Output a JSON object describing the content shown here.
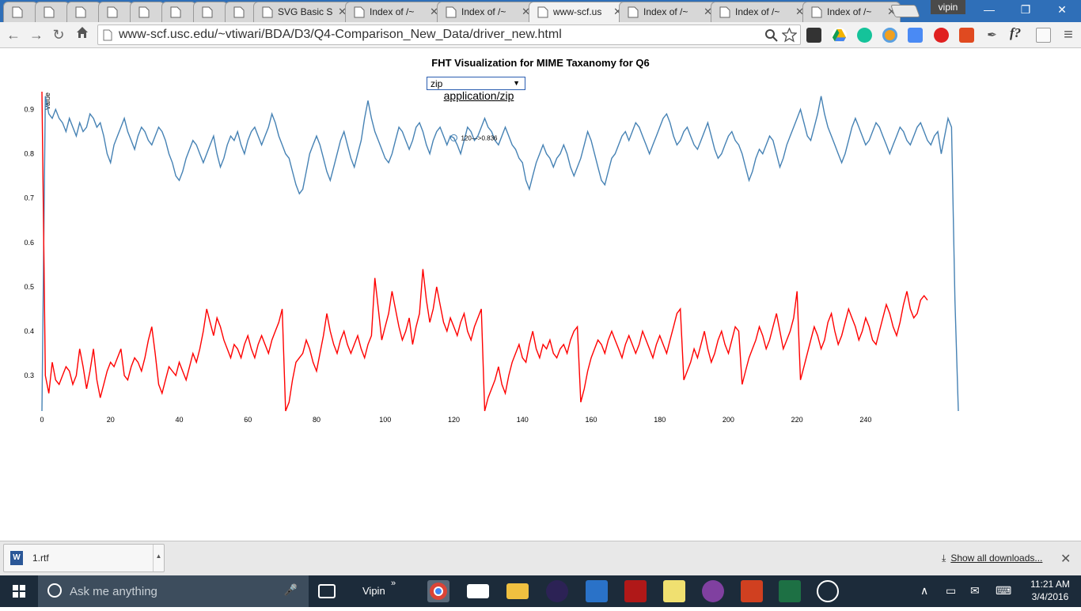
{
  "browser": {
    "tabs": [
      {
        "label": "",
        "icon": "page-icon",
        "active": false
      },
      {
        "label": "",
        "icon": "swirl-icon",
        "active": false
      },
      {
        "label": "",
        "icon": "feet-icon",
        "active": false
      },
      {
        "label": "",
        "icon": "ib-icon",
        "active": false
      },
      {
        "label": "",
        "icon": "page-icon",
        "active": false
      },
      {
        "label": "",
        "icon": "drive-icon",
        "active": false
      },
      {
        "label": "",
        "icon": "page-icon",
        "active": false
      },
      {
        "label": "",
        "icon": "page-icon",
        "active": false
      },
      {
        "label": "SVG Basic S",
        "icon": "page-icon",
        "active": false
      },
      {
        "label": "Index of /~",
        "icon": "page-icon",
        "active": false
      },
      {
        "label": "Index of /~",
        "icon": "page-icon",
        "active": false
      },
      {
        "label": "www-scf.us",
        "icon": "page-icon",
        "active": true
      },
      {
        "label": "Index of /~",
        "icon": "page-icon",
        "active": false
      },
      {
        "label": "Index of /~",
        "icon": "page-icon",
        "active": false
      },
      {
        "label": "Index of /~",
        "icon": "page-icon",
        "active": false
      }
    ],
    "user": "vipin",
    "url": "www-scf.usc.edu/~vtiwari/BDA/D3/Q4-Comparison_New_Data/driver_new.html",
    "extension_labels": {
      "formula": "f?"
    }
  },
  "page": {
    "title": "FHT Visualization for MIME Taxanomy for Q6",
    "select_value": "zip",
    "mime_label": "application/zip",
    "tooltip": "120--->0.836"
  },
  "chart_data": {
    "type": "line",
    "ylabel": "Value",
    "xlim": [
      0,
      255
    ],
    "ylim": [
      0.22,
      0.94
    ],
    "xticks": [
      0,
      20,
      40,
      60,
      80,
      100,
      120,
      140,
      160,
      180,
      200,
      220,
      240
    ],
    "yticks": [
      0.3,
      0.4,
      0.5,
      0.6,
      0.7,
      0.8,
      0.9
    ],
    "highlight": {
      "series": 0,
      "x": 120,
      "y": 0.836
    },
    "series": [
      {
        "color": "#4682b4",
        "values": [
          0.22,
          0.93,
          0.89,
          0.88,
          0.9,
          0.88,
          0.87,
          0.85,
          0.88,
          0.86,
          0.84,
          0.87,
          0.85,
          0.86,
          0.89,
          0.88,
          0.86,
          0.87,
          0.84,
          0.8,
          0.78,
          0.82,
          0.84,
          0.86,
          0.88,
          0.85,
          0.83,
          0.81,
          0.84,
          0.86,
          0.85,
          0.83,
          0.82,
          0.84,
          0.86,
          0.85,
          0.83,
          0.8,
          0.78,
          0.75,
          0.74,
          0.76,
          0.79,
          0.81,
          0.83,
          0.82,
          0.8,
          0.78,
          0.8,
          0.82,
          0.84,
          0.8,
          0.77,
          0.79,
          0.82,
          0.84,
          0.83,
          0.85,
          0.82,
          0.8,
          0.83,
          0.85,
          0.86,
          0.84,
          0.82,
          0.84,
          0.86,
          0.89,
          0.87,
          0.84,
          0.82,
          0.8,
          0.79,
          0.76,
          0.73,
          0.71,
          0.72,
          0.76,
          0.8,
          0.82,
          0.84,
          0.82,
          0.79,
          0.76,
          0.74,
          0.77,
          0.8,
          0.83,
          0.85,
          0.82,
          0.79,
          0.77,
          0.8,
          0.83,
          0.88,
          0.92,
          0.88,
          0.85,
          0.83,
          0.81,
          0.79,
          0.78,
          0.8,
          0.83,
          0.86,
          0.85,
          0.83,
          0.81,
          0.83,
          0.86,
          0.87,
          0.85,
          0.82,
          0.8,
          0.83,
          0.85,
          0.86,
          0.84,
          0.82,
          0.84,
          0.836,
          0.82,
          0.8,
          0.83,
          0.86,
          0.85,
          0.83,
          0.84,
          0.86,
          0.88,
          0.86,
          0.85,
          0.83,
          0.82,
          0.84,
          0.86,
          0.84,
          0.82,
          0.81,
          0.79,
          0.78,
          0.74,
          0.72,
          0.75,
          0.78,
          0.8,
          0.82,
          0.8,
          0.79,
          0.77,
          0.79,
          0.8,
          0.82,
          0.8,
          0.77,
          0.75,
          0.77,
          0.79,
          0.82,
          0.85,
          0.83,
          0.8,
          0.77,
          0.74,
          0.73,
          0.76,
          0.79,
          0.8,
          0.82,
          0.84,
          0.85,
          0.83,
          0.85,
          0.87,
          0.86,
          0.84,
          0.82,
          0.8,
          0.82,
          0.84,
          0.86,
          0.88,
          0.89,
          0.87,
          0.84,
          0.82,
          0.83,
          0.85,
          0.86,
          0.84,
          0.82,
          0.81,
          0.83,
          0.85,
          0.87,
          0.84,
          0.81,
          0.79,
          0.8,
          0.82,
          0.84,
          0.85,
          0.83,
          0.82,
          0.8,
          0.77,
          0.74,
          0.76,
          0.79,
          0.81,
          0.8,
          0.82,
          0.84,
          0.83,
          0.8,
          0.77,
          0.79,
          0.82,
          0.84,
          0.86,
          0.88,
          0.9,
          0.87,
          0.84,
          0.83,
          0.86,
          0.89,
          0.93,
          0.89,
          0.86,
          0.84,
          0.82,
          0.8,
          0.78,
          0.8,
          0.83,
          0.86,
          0.88,
          0.86,
          0.84,
          0.82,
          0.83,
          0.85,
          0.87,
          0.86,
          0.84,
          0.82,
          0.8,
          0.82,
          0.84,
          0.86,
          0.85,
          0.83,
          0.82,
          0.84,
          0.86,
          0.87,
          0.85,
          0.83,
          0.82,
          0.84,
          0.85,
          0.8,
          0.84,
          0.88,
          0.86,
          0.47,
          0.22
        ]
      },
      {
        "color": "#ff0000",
        "values": [
          0.94,
          0.3,
          0.26,
          0.33,
          0.29,
          0.28,
          0.3,
          0.32,
          0.31,
          0.28,
          0.3,
          0.36,
          0.32,
          0.27,
          0.31,
          0.36,
          0.29,
          0.25,
          0.28,
          0.31,
          0.33,
          0.32,
          0.34,
          0.36,
          0.3,
          0.29,
          0.32,
          0.34,
          0.33,
          0.31,
          0.34,
          0.38,
          0.41,
          0.35,
          0.28,
          0.26,
          0.29,
          0.32,
          0.31,
          0.3,
          0.33,
          0.31,
          0.29,
          0.32,
          0.35,
          0.33,
          0.36,
          0.4,
          0.45,
          0.42,
          0.39,
          0.43,
          0.41,
          0.38,
          0.36,
          0.34,
          0.37,
          0.36,
          0.34,
          0.37,
          0.39,
          0.36,
          0.34,
          0.37,
          0.39,
          0.37,
          0.35,
          0.38,
          0.4,
          0.42,
          0.45,
          0.22,
          0.24,
          0.29,
          0.33,
          0.34,
          0.35,
          0.38,
          0.36,
          0.33,
          0.31,
          0.35,
          0.39,
          0.44,
          0.4,
          0.37,
          0.35,
          0.38,
          0.4,
          0.37,
          0.35,
          0.37,
          0.39,
          0.36,
          0.34,
          0.37,
          0.39,
          0.52,
          0.45,
          0.38,
          0.41,
          0.44,
          0.49,
          0.45,
          0.41,
          0.38,
          0.4,
          0.43,
          0.37,
          0.41,
          0.44,
          0.54,
          0.47,
          0.42,
          0.45,
          0.5,
          0.46,
          0.42,
          0.4,
          0.43,
          0.41,
          0.39,
          0.42,
          0.44,
          0.4,
          0.38,
          0.41,
          0.43,
          0.45,
          0.22,
          0.25,
          0.27,
          0.29,
          0.32,
          0.28,
          0.26,
          0.3,
          0.33,
          0.35,
          0.37,
          0.34,
          0.33,
          0.37,
          0.4,
          0.36,
          0.34,
          0.37,
          0.36,
          0.38,
          0.35,
          0.34,
          0.36,
          0.37,
          0.35,
          0.38,
          0.4,
          0.41,
          0.24,
          0.27,
          0.31,
          0.34,
          0.36,
          0.38,
          0.37,
          0.35,
          0.38,
          0.4,
          0.38,
          0.36,
          0.34,
          0.37,
          0.39,
          0.37,
          0.35,
          0.37,
          0.4,
          0.38,
          0.36,
          0.34,
          0.37,
          0.39,
          0.37,
          0.35,
          0.38,
          0.41,
          0.44,
          0.45,
          0.29,
          0.31,
          0.33,
          0.36,
          0.34,
          0.37,
          0.4,
          0.36,
          0.33,
          0.35,
          0.38,
          0.4,
          0.37,
          0.35,
          0.38,
          0.41,
          0.4,
          0.28,
          0.31,
          0.34,
          0.36,
          0.38,
          0.41,
          0.39,
          0.36,
          0.38,
          0.41,
          0.44,
          0.4,
          0.36,
          0.38,
          0.4,
          0.43,
          0.49,
          0.29,
          0.32,
          0.35,
          0.38,
          0.41,
          0.39,
          0.36,
          0.38,
          0.42,
          0.44,
          0.4,
          0.37,
          0.39,
          0.42,
          0.45,
          0.43,
          0.41,
          0.38,
          0.4,
          0.43,
          0.41,
          0.38,
          0.37,
          0.4,
          0.43,
          0.46,
          0.44,
          0.41,
          0.39,
          0.42,
          0.46,
          0.49,
          0.45,
          0.43,
          0.44,
          0.47,
          0.48,
          0.47
        ]
      }
    ]
  },
  "downloads": {
    "file": "1.rtf",
    "show_all": "Show all downloads..."
  },
  "taskbar": {
    "search_placeholder": "Ask me anything",
    "user_label": "Vipin",
    "time": "11:21 AM",
    "date": "3/4/2016"
  }
}
